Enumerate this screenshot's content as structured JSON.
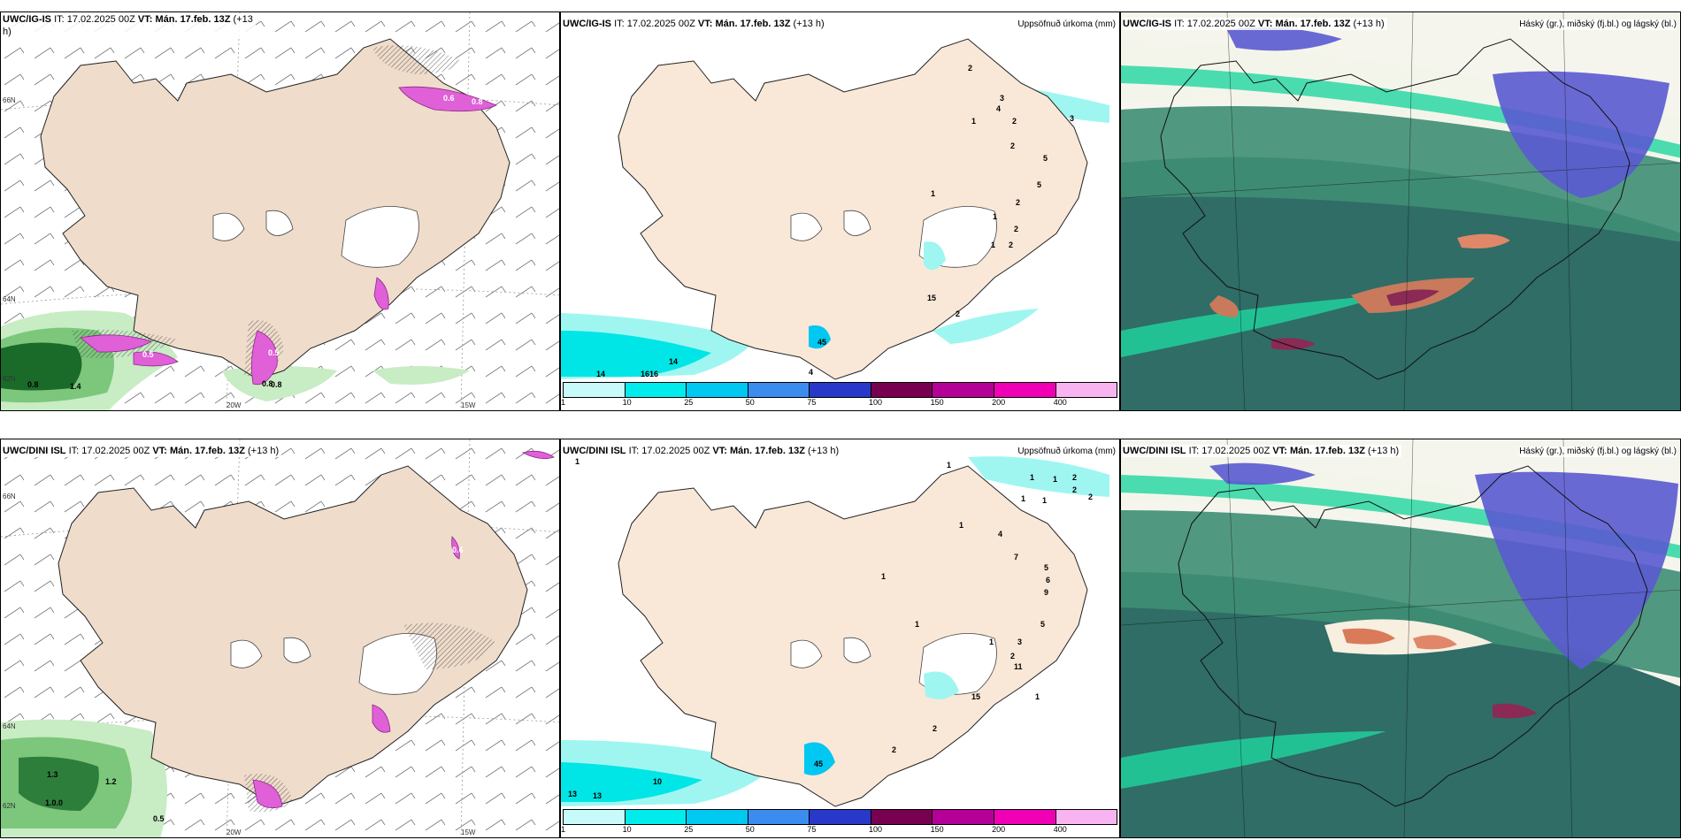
{
  "colors": {
    "land": "#f9e8d8",
    "land_left": "#efdccb",
    "coast": "#222222",
    "precip_low": "#9ff6f1",
    "precip_mid": "#00e5e5",
    "green_light": "#c8ecc4",
    "green_mid": "#7cc77c",
    "green_dark": "#1a6b2a",
    "magenta": "#e060d8",
    "cloud_high": "#5a5ad0",
    "cloud_mid": "#1fd6a0",
    "cloud_dark": "#2f6d66"
  },
  "rows": [
    {
      "panels": [
        {
          "kind": "wind",
          "title_model": "UWC/IG-IS",
          "title_it_label": "IT:",
          "title_it": "17.02.2025 00Z",
          "title_vt_label": "VT:",
          "title_vt": "Mán. 17.feb. 13Z",
          "title_lead": "(+13",
          "title_lead2": "h)",
          "field_label": "",
          "axis_labels": [
            "66N",
            "64N",
            "62N",
            "20W",
            "15W"
          ],
          "value_labels": [
            "0.6",
            "0.8",
            "0.5",
            "0.8",
            "1.4",
            "0.8",
            "0.8",
            "0.5"
          ]
        },
        {
          "kind": "precip",
          "title_model": "UWC/IG-IS",
          "title_it_label": "IT:",
          "title_it": "17.02.2025 00Z",
          "title_vt_label": "VT:",
          "title_vt": "Mán. 17.feb. 13Z",
          "title_lead": "(+13 h)",
          "field_label": "Uppsöfnuð úrkoma (mm)",
          "value_labels": [
            "2",
            "3",
            "4",
            "1",
            "2",
            "3",
            "2",
            "5",
            "5",
            "1",
            "2",
            "1",
            "2",
            "2",
            "1",
            "15",
            "2",
            "14",
            "16",
            "16",
            "14",
            "4",
            "45"
          ]
        },
        {
          "kind": "cloud",
          "title_model": "UWC/IG-IS",
          "title_it_label": "IT:",
          "title_it": "17.02.2025 00Z",
          "title_vt_label": "VT:",
          "title_vt": "Mán. 17.feb. 13Z",
          "title_lead": "(+13 h)",
          "field_label": "Háský (gr.), miðský (fj.bl.) og lágský (bl.)"
        }
      ]
    },
    {
      "panels": [
        {
          "kind": "wind",
          "title_model": "UWC/DINI ISL",
          "title_it_label": "IT:",
          "title_it": "17.02.2025 00Z",
          "title_vt_label": "VT:",
          "title_vt": "Mán. 17.feb. 13Z",
          "title_lead": "(+13 h)",
          "title_lead2": "",
          "field_label": "",
          "axis_labels": [
            "66N",
            "64N",
            "62N",
            "20W",
            "15W"
          ],
          "value_labels": [
            "0.6",
            "1.3",
            "1.2",
            "1.0.0",
            "0.5"
          ]
        },
        {
          "kind": "precip",
          "title_model": "UWC/DINI ISL",
          "title_it_label": "IT:",
          "title_it": "17.02.2025 00Z",
          "title_vt_label": "VT:",
          "title_vt": "Mán. 17.feb. 13Z",
          "title_lead": "(+13 h)",
          "field_label": "Uppsöfnuð úrkoma (mm)",
          "value_labels": [
            "1",
            "1",
            "1",
            "1",
            "2",
            "1",
            "2",
            "2",
            "1",
            "1",
            "4",
            "7",
            "5",
            "6",
            "9",
            "1",
            "5",
            "1",
            "1",
            "3",
            "11",
            "2",
            "1",
            "15",
            "2",
            "2",
            "10",
            "13",
            "13",
            "45"
          ]
        },
        {
          "kind": "cloud",
          "title_model": "UWC/DINI ISL",
          "title_it_label": "IT:",
          "title_it": "17.02.2025 00Z",
          "title_vt_label": "VT:",
          "title_vt": "Mán. 17.feb. 13Z",
          "title_lead": "(+13 h)",
          "field_label": "Háský (gr.), miðský (fj.bl.) og lágský (bl.)"
        }
      ]
    }
  ],
  "precip_scale": {
    "ticks": [
      "1",
      "10",
      "25",
      "50",
      "75",
      "100",
      "150",
      "200",
      "400"
    ],
    "colors": [
      "#c8fafa",
      "#00ecec",
      "#00c8f0",
      "#3c8cf0",
      "#2838c8",
      "#780050",
      "#b40096",
      "#f000b4",
      "#f8b4f0"
    ]
  }
}
